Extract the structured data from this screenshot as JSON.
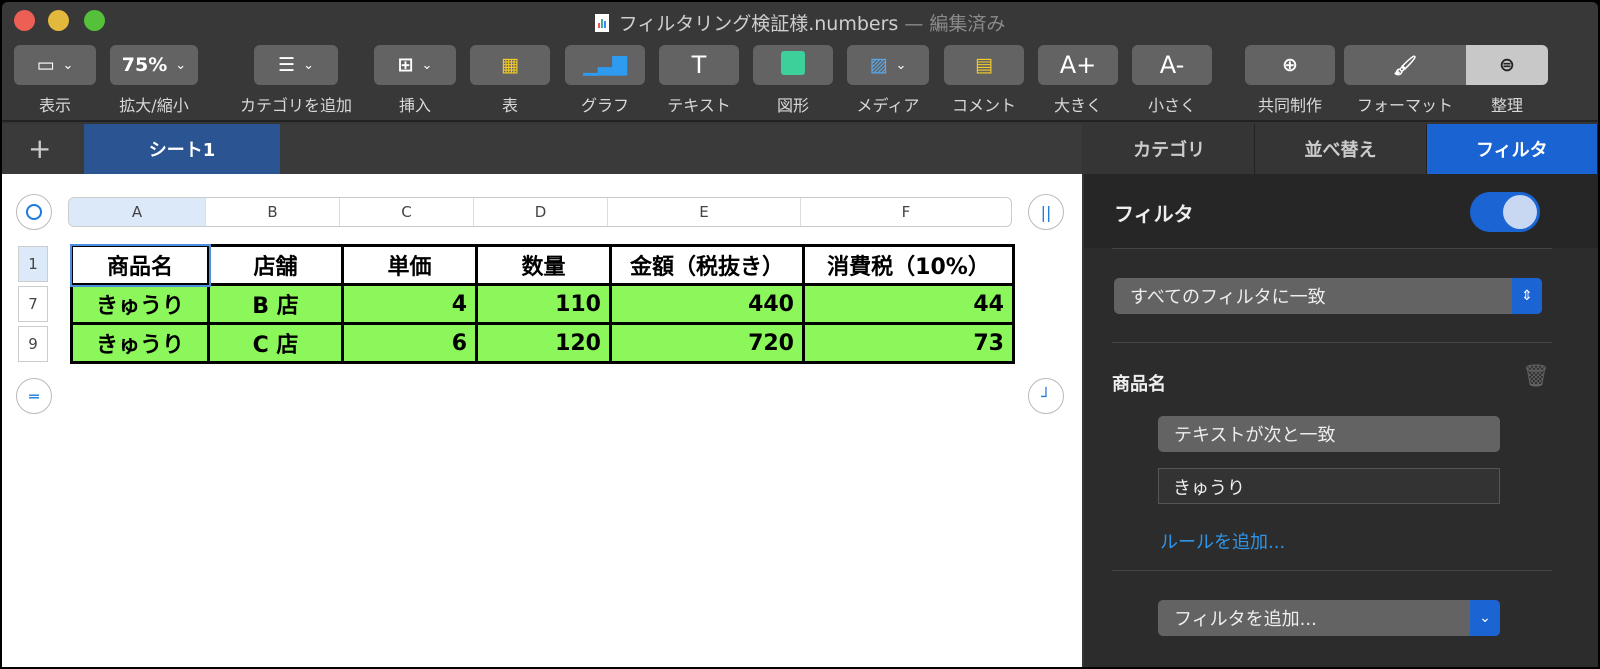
{
  "window": {
    "title": "フィルタリング検証様.numbers",
    "status": "— 編集済み"
  },
  "toolbar": [
    {
      "id": "view",
      "icon": "sidebar-view-icon",
      "label": "表示",
      "dropdown": true
    },
    {
      "id": "zoom",
      "value": "75%",
      "label": "拡大/縮小",
      "dropdown": true
    },
    {
      "id": "category",
      "icon": "list-icon",
      "label": "カテゴリを追加",
      "dropdown": true
    },
    {
      "id": "insert",
      "icon": "insert-icon",
      "label": "挿入",
      "dropdown": true
    },
    {
      "id": "table",
      "icon": "table-icon",
      "label": "表"
    },
    {
      "id": "chart",
      "icon": "chart-icon",
      "label": "グラフ"
    },
    {
      "id": "text",
      "icon": "text-icon",
      "value": "T",
      "label": "テキスト"
    },
    {
      "id": "shape",
      "icon": "shape-icon",
      "label": "図形"
    },
    {
      "id": "media",
      "icon": "media-icon",
      "label": "メディア",
      "dropdown": true
    },
    {
      "id": "comment",
      "icon": "comment-icon",
      "label": "コメント"
    },
    {
      "id": "bigger",
      "value": "A+",
      "label": "大きく"
    },
    {
      "id": "smaller",
      "value": "A-",
      "label": "小さく"
    },
    {
      "id": "collab",
      "icon": "collaborate-icon",
      "label": "共同制作"
    },
    {
      "id": "format",
      "icon": "paintbrush-icon",
      "label": "フォーマット"
    },
    {
      "id": "organize",
      "icon": "filter-icon",
      "label": "整理"
    }
  ],
  "sheets": {
    "add": "+",
    "tabs": [
      "シート1"
    ]
  },
  "table": {
    "columns": [
      "A",
      "B",
      "C",
      "D",
      "E",
      "F"
    ],
    "row_numbers": [
      "1",
      "7",
      "9"
    ],
    "header": [
      "商品名",
      "店舗",
      "単価",
      "数量",
      "金額（税抜き）",
      "消費税（10%）"
    ],
    "rows": [
      [
        "きゅうり",
        "B 店",
        "4",
        "110",
        "440",
        "44"
      ],
      [
        "きゅうり",
        "C 店",
        "6",
        "120",
        "720",
        "73"
      ]
    ],
    "fill_color": "#8cf75a"
  },
  "sidebar": {
    "tabs": [
      "カテゴリ",
      "並べ替え",
      "フィルタ"
    ],
    "active_tab": "フィルタ",
    "filter_label": "フィルタ",
    "filter_on": true,
    "match_mode": "すべてのフィルタに一致",
    "rule_column": "商品名",
    "rule_condition": "テキストが次と一致",
    "rule_value": "きゅうり",
    "add_rule": "ルールを追加...",
    "add_filter": "フィルタを追加...",
    "accent": "#1b64d3"
  }
}
